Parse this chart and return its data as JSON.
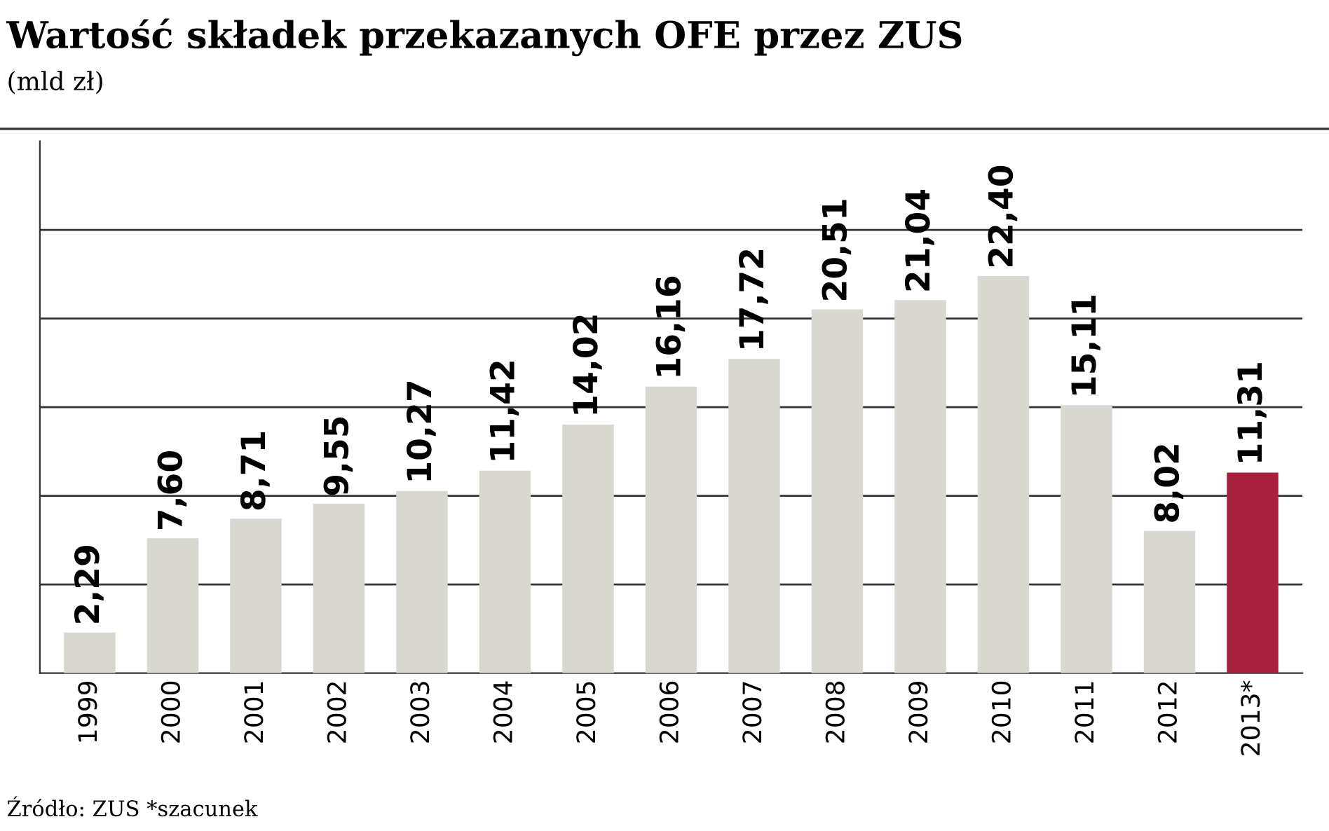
{
  "chart_data": {
    "type": "bar",
    "title": "Wartość składek przekazanych OFE przez ZUS",
    "subtitle": "(mld zł)",
    "categories": [
      "1999",
      "2000",
      "2001",
      "2002",
      "2003",
      "2004",
      "2005",
      "2006",
      "2007",
      "2008",
      "2009",
      "2010",
      "2011",
      "2012",
      "2013*"
    ],
    "values": [
      2.29,
      7.6,
      8.71,
      9.55,
      10.27,
      11.42,
      14.02,
      16.16,
      17.72,
      20.51,
      21.04,
      22.4,
      15.11,
      8.02,
      11.31
    ],
    "value_labels": [
      "2,29",
      "7,60",
      "8,71",
      "9,55",
      "10,27",
      "11,42",
      "14,02",
      "16,16",
      "17,72",
      "20,51",
      "21,04",
      "22,40",
      "15,11",
      "8,02",
      "11,31"
    ],
    "colors": [
      "#d8d8d0",
      "#d8d8d0",
      "#d8d8d0",
      "#d8d8d0",
      "#d8d8d0",
      "#d8d8d0",
      "#d8d8d0",
      "#d8d8d0",
      "#d8d8d0",
      "#d8d8d0",
      "#d8d8d0",
      "#d8d8d0",
      "#d8d8d0",
      "#d8d8d0",
      "#a8223f"
    ],
    "ylim": [
      0,
      30
    ],
    "yticks": [
      {
        "value": 5,
        "label": null
      },
      {
        "value": 10,
        "label": null
      },
      {
        "value": 15,
        "label": null
      },
      {
        "value": 20,
        "label": null
      },
      {
        "value": 25,
        "label": null
      }
    ],
    "grid": "y",
    "tick_labels": "x",
    "annotations": [
      "Źródło: ZUS *szacunek"
    ]
  }
}
